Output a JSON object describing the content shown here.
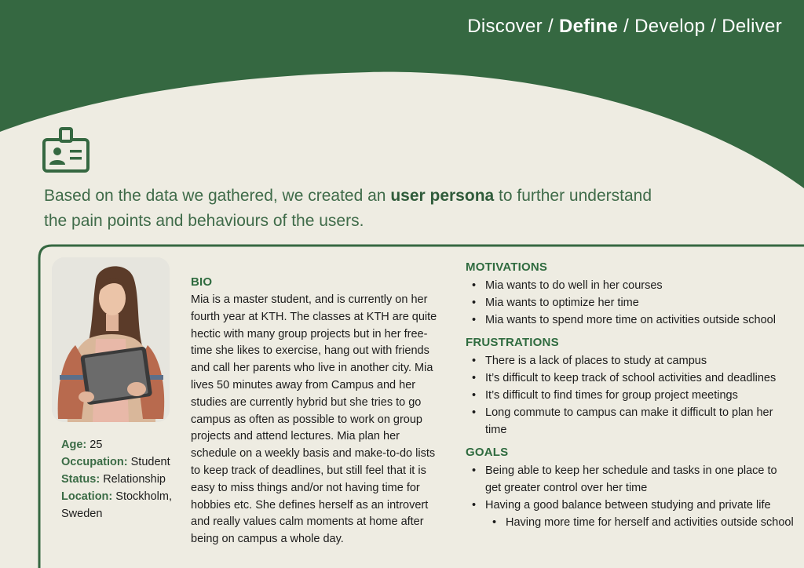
{
  "nav": {
    "items": [
      "Discover",
      "Define",
      "Develop",
      "Deliver"
    ],
    "separator": "/",
    "active": "Define"
  },
  "icons": {
    "persona": "id-badge-icon"
  },
  "intro": {
    "before": "Based on the data we gathered, we created an ",
    "highlight": "user persona",
    "after": " to further understand the pain points and behaviours of the users."
  },
  "persona": {
    "photo_alt": "young woman holding a tablet",
    "details": [
      {
        "label": "Age:",
        "value": "25"
      },
      {
        "label": "Occupation:",
        "value": "Student"
      },
      {
        "label": "Status:",
        "value": "Relationship"
      },
      {
        "label": "Location:",
        "value": "Stockholm, Sweden"
      }
    ],
    "bio": {
      "heading": "BIO",
      "text": "Mia is a master student, and is currently on her fourth year at KTH. The classes at KTH are quite hectic with many group projects but in her free-time she likes to exercise, hang out with friends and call her parents who live in another city. Mia lives 50 minutes away from Campus and her studies are currently hybrid but she tries to go campus as often as possible to work on group projects and attend lectures. Mia plan her schedule on a weekly basis and make-to-do lists to keep track of deadlines, but still feel that it is easy to miss things and/or not having time for hobbies etc. She defines herself as an introvert and really values calm moments at home after being on campus a whole day."
    },
    "motivations": {
      "heading": "MOTIVATIONS",
      "items": [
        "Mia wants to do well in her courses",
        "Mia wants to optimize her time",
        "Mia wants to spend more time on activities outside school"
      ]
    },
    "frustrations": {
      "heading": "FRUSTRATIONS",
      "items": [
        "There is a lack of places to study at campus",
        "It’s difficult to keep track of school activities and deadlines",
        "It’s difficult to find times for group project meetings",
        "Long commute to campus can make it difficult to plan her time"
      ]
    },
    "goals": {
      "heading": "GOALS",
      "items": [
        "Being able to keep her schedule and tasks in one place to get greater control over her time",
        "Having a good balance between studying and private life"
      ],
      "subitems": [
        "Having more time for herself and activities outside school"
      ]
    }
  },
  "colors": {
    "primary_green": "#356841",
    "text_green": "#3f6b49",
    "background": "#eeece2"
  }
}
